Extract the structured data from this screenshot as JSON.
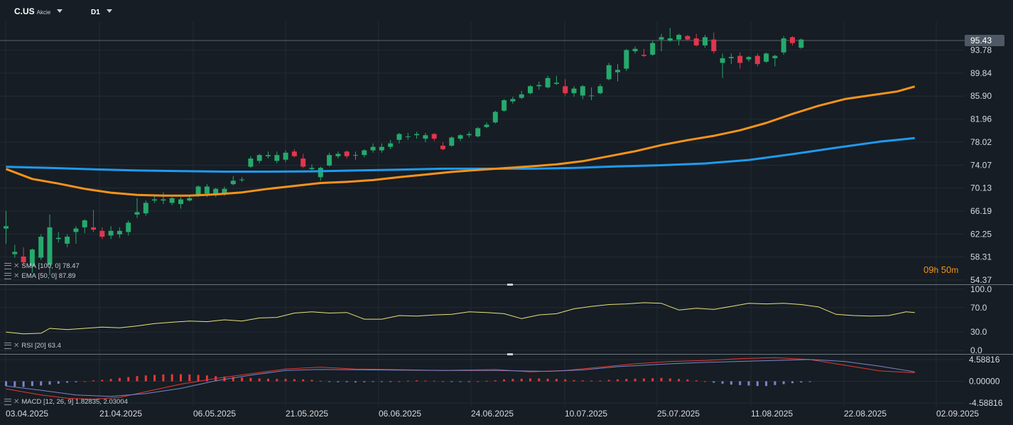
{
  "header": {
    "symbol": "C.US",
    "type": "Akcie",
    "timeframe": "D1"
  },
  "colors": {
    "background": "#161d24",
    "up": "#26a96c",
    "down": "#e0364d",
    "sma": "#1e9bef",
    "ema": "#f7931a",
    "rsi": "#e8e27a",
    "macd_line": "#e53935",
    "macd_signal": "#7986cb",
    "price_label_bg": "#4e5965"
  },
  "timer": {
    "hours": "09",
    "h": "h",
    "minutes": "50",
    "m": "m"
  },
  "indicators": {
    "sma": {
      "name": "SMA",
      "params": "[100,  0]",
      "value": "78.47"
    },
    "ema": {
      "name": "EMA",
      "params": "[50,  0]",
      "value": "87.89"
    },
    "rsi": {
      "name": "RSI",
      "params": "[20]",
      "value": "63.4"
    },
    "macd": {
      "name": "MACD",
      "params": "[12,  26,  9]",
      "value1": "1.82835,",
      "value2": "2.03004"
    }
  },
  "chart_data": [
    {
      "type": "candlestick",
      "current_price_label": "95.43",
      "price_ticks": [
        "93.78",
        "89.84",
        "85.90",
        "81.96",
        "78.02",
        "74.07",
        "70.13",
        "66.19",
        "62.25",
        "58.31",
        "54.37"
      ],
      "ylim": [
        54.37,
        97.75
      ],
      "x_labels": [
        "03.04.2025",
        "21.04.2025",
        "06.05.2025",
        "21.05.2025",
        "06.06.2025",
        "24.06.2025",
        "10.07.2025",
        "25.07.2025",
        "11.08.2025",
        "22.08.2025",
        "02.09.2025"
      ],
      "candles": [
        [
          63.2,
          66.2,
          60.6,
          63.6
        ],
        [
          58.8,
          60.4,
          58.2,
          59.2
        ],
        [
          58.4,
          60.0,
          56.8,
          57.4
        ],
        [
          56.8,
          59.8,
          55.6,
          59.6
        ],
        [
          58.2,
          62.2,
          57.8,
          61.8
        ],
        [
          57.0,
          65.6,
          55.2,
          63.4
        ],
        [
          61.4,
          62.6,
          60.8,
          61.6
        ],
        [
          60.6,
          62.2,
          60.0,
          61.8
        ],
        [
          62.6,
          63.6,
          60.6,
          63.2
        ],
        [
          63.4,
          64.8,
          62.4,
          64.6
        ],
        [
          63.4,
          66.4,
          62.6,
          63.0
        ],
        [
          62.8,
          63.4,
          61.4,
          61.8
        ],
        [
          62.0,
          63.6,
          61.4,
          62.8
        ],
        [
          62.2,
          63.4,
          61.6,
          62.8
        ],
        [
          62.6,
          64.6,
          62.0,
          64.2
        ],
        [
          65.6,
          68.4,
          65.0,
          66.0
        ],
        [
          65.8,
          68.0,
          65.4,
          67.6
        ],
        [
          68.0,
          69.0,
          67.6,
          68.2
        ],
        [
          68.0,
          69.4,
          67.4,
          68.2
        ],
        [
          67.6,
          68.6,
          67.2,
          68.4
        ],
        [
          67.4,
          68.6,
          66.6,
          68.2
        ],
        [
          68.0,
          69.0,
          67.8,
          68.4
        ],
        [
          69.0,
          70.6,
          68.6,
          70.4
        ],
        [
          69.2,
          70.8,
          68.6,
          70.4
        ],
        [
          69.0,
          70.2,
          68.6,
          70.0
        ],
        [
          69.2,
          70.4,
          68.8,
          70.0
        ],
        [
          70.8,
          72.2,
          70.6,
          71.4
        ],
        [
          71.6,
          72.0,
          71.2,
          71.6
        ],
        [
          73.8,
          75.6,
          73.6,
          75.2
        ],
        [
          74.8,
          76.0,
          74.4,
          75.8
        ],
        [
          75.6,
          76.4,
          75.2,
          75.8
        ],
        [
          74.8,
          76.4,
          74.4,
          75.8
        ],
        [
          75.0,
          76.6,
          74.6,
          76.2
        ],
        [
          76.4,
          76.8,
          75.4,
          75.6
        ],
        [
          75.2,
          76.0,
          73.6,
          73.8
        ],
        [
          73.4,
          74.2,
          73.2,
          73.6
        ],
        [
          72.0,
          73.8,
          71.4,
          73.6
        ],
        [
          74.0,
          76.2,
          73.8,
          75.8
        ],
        [
          75.6,
          76.4,
          75.2,
          76.0
        ],
        [
          76.4,
          76.6,
          75.2,
          75.6
        ],
        [
          75.8,
          76.4,
          75.0,
          75.8
        ],
        [
          75.8,
          76.8,
          75.4,
          76.6
        ],
        [
          76.6,
          77.8,
          76.2,
          77.2
        ],
        [
          76.6,
          77.8,
          76.2,
          77.2
        ],
        [
          77.2,
          78.4,
          76.8,
          77.8
        ],
        [
          78.4,
          79.6,
          77.8,
          79.4
        ],
        [
          79.0,
          79.6,
          78.4,
          79.0
        ],
        [
          79.2,
          79.8,
          78.6,
          79.4
        ],
        [
          78.6,
          79.6,
          78.0,
          79.2
        ],
        [
          79.4,
          79.6,
          78.2,
          78.6
        ],
        [
          77.4,
          78.0,
          76.6,
          76.8
        ],
        [
          77.4,
          79.0,
          77.2,
          78.8
        ],
        [
          78.6,
          79.4,
          78.2,
          79.2
        ],
        [
          79.2,
          79.8,
          78.8,
          79.4
        ],
        [
          79.0,
          80.6,
          78.8,
          80.4
        ],
        [
          80.6,
          81.4,
          80.4,
          81.0
        ],
        [
          81.4,
          83.4,
          81.2,
          83.2
        ],
        [
          83.4,
          85.4,
          83.2,
          85.2
        ],
        [
          85.0,
          85.8,
          84.6,
          85.4
        ],
        [
          85.6,
          86.8,
          85.4,
          86.2
        ],
        [
          86.4,
          87.8,
          86.2,
          87.6
        ],
        [
          87.6,
          88.4,
          87.0,
          87.8
        ],
        [
          87.4,
          89.4,
          87.2,
          89.0
        ],
        [
          88.0,
          89.4,
          87.8,
          88.2
        ],
        [
          87.6,
          88.8,
          86.0,
          86.4
        ],
        [
          86.4,
          87.6,
          85.8,
          87.2
        ],
        [
          86.0,
          87.8,
          85.4,
          87.6
        ],
        [
          86.0,
          87.4,
          85.2,
          86.0
        ],
        [
          86.4,
          88.0,
          86.2,
          87.6
        ],
        [
          88.8,
          91.6,
          88.6,
          91.2
        ],
        [
          90.0,
          91.4,
          88.4,
          90.4
        ],
        [
          90.6,
          94.0,
          90.2,
          93.8
        ],
        [
          93.6,
          94.4,
          93.2,
          94.0
        ],
        [
          93.0,
          94.0,
          92.6,
          92.8
        ],
        [
          93.0,
          95.4,
          92.8,
          95.0
        ],
        [
          95.6,
          96.6,
          93.6,
          96.0
        ],
        [
          95.4,
          97.6,
          95.2,
          95.8
        ],
        [
          95.6,
          96.6,
          94.6,
          96.4
        ],
        [
          96.2,
          96.4,
          95.4,
          95.6
        ],
        [
          95.8,
          96.6,
          94.4,
          94.6
        ],
        [
          94.6,
          96.4,
          94.2,
          96.0
        ],
        [
          95.6,
          96.8,
          93.2,
          93.6
        ],
        [
          91.6,
          93.2,
          89.0,
          92.4
        ],
        [
          92.4,
          93.2,
          91.4,
          92.6
        ],
        [
          92.8,
          93.4,
          90.6,
          91.6
        ],
        [
          92.2,
          92.8,
          91.8,
          92.6
        ],
        [
          92.8,
          93.2,
          91.0,
          91.4
        ],
        [
          91.8,
          93.4,
          91.6,
          93.2
        ],
        [
          92.4,
          93.0,
          91.0,
          92.8
        ],
        [
          93.4,
          96.2,
          93.0,
          95.8
        ],
        [
          96.0,
          96.2,
          94.6,
          95.0
        ],
        [
          94.2,
          95.8,
          94.0,
          95.6
        ]
      ],
      "sma": [
        [
          0,
          73.78
        ],
        [
          5,
          73.6
        ],
        [
          10,
          73.35
        ],
        [
          15,
          73.15
        ],
        [
          20,
          73.05
        ],
        [
          25,
          72.95
        ],
        [
          30,
          72.95
        ],
        [
          35,
          73.0
        ],
        [
          40,
          73.15
        ],
        [
          45,
          73.3
        ],
        [
          50,
          73.45
        ],
        [
          55,
          73.45
        ],
        [
          60,
          73.45
        ],
        [
          65,
          73.6
        ],
        [
          70,
          73.85
        ],
        [
          75,
          74.05
        ],
        [
          80,
          74.35
        ],
        [
          85,
          74.95
        ],
        [
          90,
          75.95
        ],
        [
          95,
          77.05
        ],
        [
          100,
          78.1
        ],
        [
          104,
          78.7
        ]
      ],
      "ema": [
        [
          0,
          73.4
        ],
        [
          3,
          71.7
        ],
        [
          6,
          70.9
        ],
        [
          9,
          70.0
        ],
        [
          12,
          69.35
        ],
        [
          15,
          68.95
        ],
        [
          18,
          68.85
        ],
        [
          21,
          68.85
        ],
        [
          24,
          69.05
        ],
        [
          27,
          69.4
        ],
        [
          30,
          70.0
        ],
        [
          33,
          70.5
        ],
        [
          36,
          71.0
        ],
        [
          39,
          71.2
        ],
        [
          42,
          71.5
        ],
        [
          45,
          72.0
        ],
        [
          48,
          72.45
        ],
        [
          51,
          72.9
        ],
        [
          54,
          73.25
        ],
        [
          57,
          73.55
        ],
        [
          60,
          73.85
        ],
        [
          63,
          74.2
        ],
        [
          66,
          74.75
        ],
        [
          69,
          75.6
        ],
        [
          72,
          76.45
        ],
        [
          75,
          77.5
        ],
        [
          78,
          78.35
        ],
        [
          81,
          79.1
        ],
        [
          84,
          80.05
        ],
        [
          87,
          81.3
        ],
        [
          90,
          82.85
        ],
        [
          93,
          84.25
        ],
        [
          96,
          85.4
        ],
        [
          99,
          86.05
        ],
        [
          102,
          86.7
        ],
        [
          104,
          87.55
        ]
      ],
      "series": [
        {
          "name": "SMA",
          "indicator": "sma"
        },
        {
          "name": "EMA",
          "indicator": "ema"
        }
      ]
    },
    {
      "type": "line",
      "name": "RSI",
      "ticks": [
        "100.0",
        "70.0",
        "30.0",
        "0.0"
      ],
      "ylim": [
        0,
        100
      ],
      "values": [
        [
          0,
          30
        ],
        [
          2,
          27
        ],
        [
          4,
          28
        ],
        [
          5,
          36
        ],
        [
          7,
          34
        ],
        [
          9,
          36
        ],
        [
          11,
          38
        ],
        [
          13,
          37
        ],
        [
          15,
          40
        ],
        [
          17,
          44
        ],
        [
          19,
          46
        ],
        [
          21,
          48
        ],
        [
          23,
          47
        ],
        [
          25,
          50
        ],
        [
          27,
          48
        ],
        [
          29,
          53
        ],
        [
          31,
          54
        ],
        [
          33,
          61
        ],
        [
          35,
          63
        ],
        [
          37,
          61
        ],
        [
          39,
          62
        ],
        [
          41,
          51
        ],
        [
          43,
          51
        ],
        [
          45,
          57
        ],
        [
          47,
          56
        ],
        [
          49,
          58
        ],
        [
          51,
          59
        ],
        [
          53,
          63
        ],
        [
          55,
          62
        ],
        [
          57,
          60
        ],
        [
          59,
          52
        ],
        [
          61,
          58
        ],
        [
          63,
          60
        ],
        [
          65,
          68
        ],
        [
          67,
          72
        ],
        [
          69,
          75
        ],
        [
          71,
          76
        ],
        [
          73,
          78
        ],
        [
          75,
          77
        ],
        [
          77,
          66
        ],
        [
          79,
          69
        ],
        [
          81,
          67
        ],
        [
          83,
          72
        ],
        [
          85,
          77
        ],
        [
          87,
          76
        ],
        [
          89,
          77
        ],
        [
          91,
          75
        ],
        [
          93,
          71
        ],
        [
          95,
          59
        ],
        [
          97,
          57
        ],
        [
          99,
          56
        ],
        [
          101,
          57
        ],
        [
          103,
          63
        ],
        [
          104,
          62
        ]
      ]
    },
    {
      "type": "bar+line",
      "name": "MACD",
      "ticks": [
        "4.58816",
        "0.00000",
        "-4.58816"
      ],
      "ylim": [
        -4.58816,
        4.58816
      ],
      "histogram": [
        -1.0,
        -1.1,
        -1.2,
        -1.0,
        -0.9,
        -0.7,
        -0.5,
        -0.3,
        -0.2,
        0.0,
        0.2,
        0.3,
        0.5,
        0.7,
        0.9,
        1.1,
        1.25,
        1.35,
        1.45,
        1.5,
        1.5,
        1.45,
        1.35,
        1.25,
        1.1,
        1.0,
        0.9,
        0.8,
        0.7,
        0.6,
        0.55,
        0.5,
        0.5,
        0.45,
        0.4,
        0.3,
        0.1,
        -0.1,
        -0.2,
        -0.2,
        -0.25,
        -0.2,
        -0.15,
        -0.1,
        -0.05,
        0.0,
        0.1,
        0.2,
        0.15,
        0.1,
        0.0,
        -0.05,
        -0.15,
        -0.1,
        0.0,
        0.1,
        0.2,
        0.4,
        0.5,
        0.55,
        0.6,
        0.6,
        0.55,
        0.5,
        0.4,
        0.25,
        0.2,
        0.15,
        0.15,
        0.3,
        0.4,
        0.5,
        0.55,
        0.6,
        0.65,
        0.7,
        0.6,
        0.5,
        0.4,
        0.2,
        0.0,
        -0.3,
        -0.5,
        -0.7,
        -0.8,
        -0.9,
        -1.0,
        -1.0,
        -0.8,
        -0.6,
        -0.4,
        -0.25,
        -0.1
      ],
      "macd": [
        [
          0,
          -1.6
        ],
        [
          4,
          -2.9
        ],
        [
          7,
          -3.6
        ],
        [
          10,
          -3.8
        ],
        [
          13,
          -3.4
        ],
        [
          16,
          -2.2
        ],
        [
          20,
          -0.6
        ],
        [
          24,
          0.6
        ],
        [
          28,
          1.6
        ],
        [
          32,
          2.6
        ],
        [
          36,
          3.0
        ],
        [
          40,
          2.6
        ],
        [
          44,
          2.5
        ],
        [
          50,
          2.3
        ],
        [
          56,
          2.5
        ],
        [
          60,
          2.0
        ],
        [
          64,
          2.3
        ],
        [
          68,
          3.0
        ],
        [
          72,
          3.7
        ],
        [
          76,
          4.2
        ],
        [
          80,
          4.4
        ],
        [
          84,
          4.8
        ],
        [
          88,
          5.0
        ],
        [
          92,
          4.6
        ],
        [
          96,
          3.4
        ],
        [
          100,
          2.2
        ],
        [
          104,
          1.8
        ]
      ],
      "signal": [
        [
          0,
          -1.0
        ],
        [
          4,
          -1.9
        ],
        [
          8,
          -2.9
        ],
        [
          12,
          -3.2
        ],
        [
          16,
          -2.6
        ],
        [
          20,
          -1.5
        ],
        [
          24,
          0.1
        ],
        [
          28,
          1.3
        ],
        [
          32,
          2.3
        ],
        [
          36,
          2.5
        ],
        [
          42,
          2.4
        ],
        [
          50,
          2.3
        ],
        [
          56,
          2.3
        ],
        [
          62,
          2.1
        ],
        [
          66,
          2.4
        ],
        [
          70,
          3.1
        ],
        [
          76,
          3.7
        ],
        [
          80,
          4.0
        ],
        [
          86,
          4.3
        ],
        [
          92,
          4.6
        ],
        [
          96,
          4.2
        ],
        [
          100,
          3.2
        ],
        [
          104,
          2.0
        ]
      ]
    }
  ]
}
